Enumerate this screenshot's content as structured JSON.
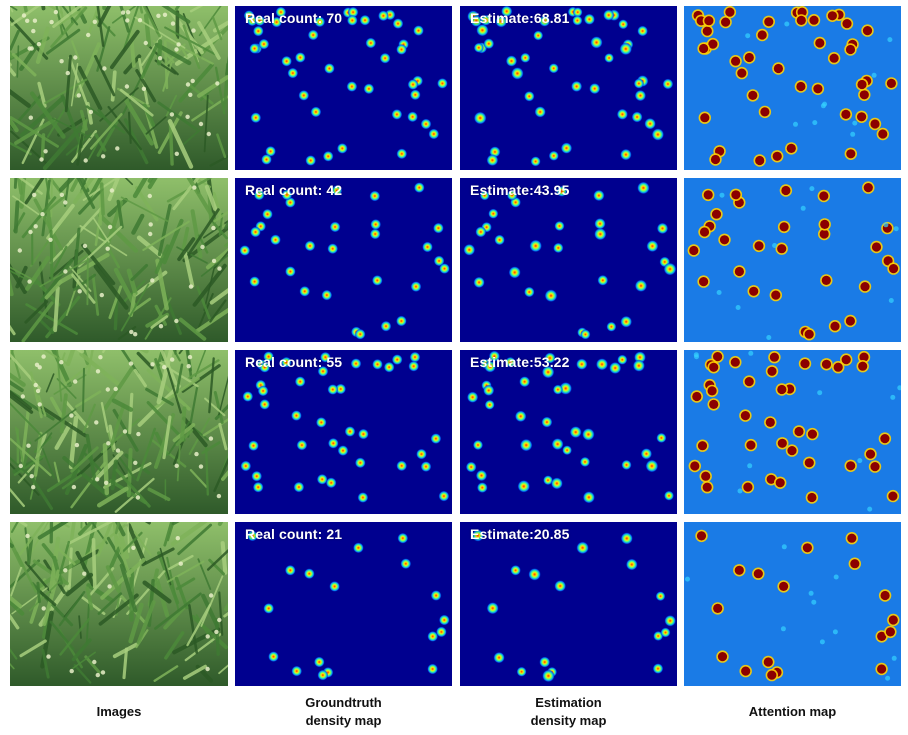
{
  "columns": [
    {
      "caption": [
        "Images"
      ]
    },
    {
      "caption": [
        "Groundtruth",
        "density map"
      ]
    },
    {
      "caption": [
        "Estimation",
        "density map"
      ]
    },
    {
      "caption": [
        "Attention map"
      ]
    }
  ],
  "rows": [
    {
      "real_count_label": "Real count: 70",
      "estimate_label": "Estimate:68.81"
    },
    {
      "real_count_label": "Real count: 42",
      "estimate_label": "Estimate:43.95"
    },
    {
      "real_count_label": "Real count: 55",
      "estimate_label": "Estimate:53.22"
    },
    {
      "real_count_label": "Real count: 21",
      "estimate_label": "Estimate:20.85"
    }
  ],
  "colors": {
    "density_background": "#00008f",
    "attention_background": "#1a7be6",
    "attention_blob": "#8b0000",
    "field_dark": "#2f5a2a",
    "field_light": "#8fbf6a"
  }
}
